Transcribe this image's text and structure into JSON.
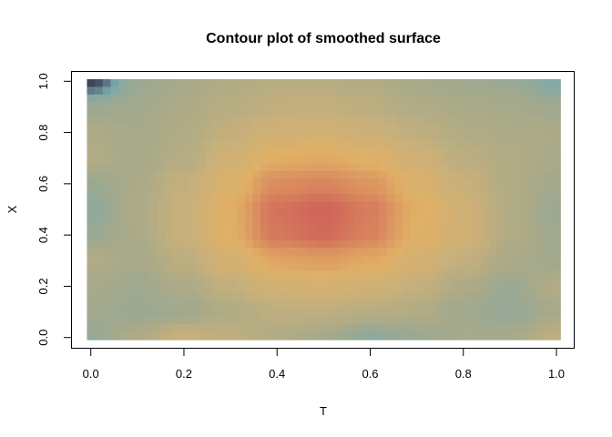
{
  "chart_data": {
    "type": "heatmap",
    "title": "Contour plot of  smoothed surface",
    "xlabel": "T",
    "ylabel": "X",
    "xlim": [
      0,
      1
    ],
    "ylim": [
      0,
      1
    ],
    "xticks": [
      "0.0",
      "0.2",
      "0.4",
      "0.6",
      "0.8",
      "1.0"
    ],
    "yticks": [
      "0.0",
      "0.2",
      "0.4",
      "0.6",
      "0.8",
      "1.0"
    ],
    "grid": false,
    "colormap": [
      "#3f4358",
      "#7aa9ad",
      "#a3a98c",
      "#c8b07a",
      "#e0b066",
      "#da8a5e",
      "#cd5c58"
    ],
    "x": [
      0,
      0.1,
      0.2,
      0.3,
      0.4,
      0.5,
      0.6,
      0.7,
      0.8,
      0.9,
      1.0
    ],
    "y": [
      1.0,
      0.9,
      0.8,
      0.7,
      0.6,
      0.5,
      0.4,
      0.3,
      0.2,
      0.1,
      0.0
    ],
    "z": [
      [
        0.0,
        0.3,
        0.35,
        0.4,
        0.42,
        0.42,
        0.4,
        0.35,
        0.32,
        0.3,
        0.2
      ],
      [
        0.3,
        0.33,
        0.38,
        0.43,
        0.47,
        0.48,
        0.45,
        0.4,
        0.37,
        0.35,
        0.32
      ],
      [
        0.38,
        0.35,
        0.4,
        0.48,
        0.55,
        0.56,
        0.52,
        0.46,
        0.4,
        0.38,
        0.37
      ],
      [
        0.4,
        0.35,
        0.42,
        0.55,
        0.68,
        0.7,
        0.65,
        0.55,
        0.45,
        0.4,
        0.36
      ],
      [
        0.3,
        0.37,
        0.48,
        0.62,
        0.82,
        0.85,
        0.78,
        0.62,
        0.5,
        0.4,
        0.33
      ],
      [
        0.25,
        0.38,
        0.5,
        0.68,
        0.92,
        0.97,
        0.88,
        0.68,
        0.55,
        0.4,
        0.3
      ],
      [
        0.3,
        0.37,
        0.5,
        0.67,
        0.9,
        0.95,
        0.86,
        0.66,
        0.55,
        0.4,
        0.32
      ],
      [
        0.4,
        0.35,
        0.45,
        0.58,
        0.72,
        0.75,
        0.7,
        0.58,
        0.48,
        0.37,
        0.33
      ],
      [
        0.35,
        0.32,
        0.38,
        0.47,
        0.56,
        0.58,
        0.55,
        0.48,
        0.38,
        0.3,
        0.4
      ],
      [
        0.33,
        0.3,
        0.32,
        0.4,
        0.45,
        0.45,
        0.42,
        0.4,
        0.32,
        0.28,
        0.35
      ],
      [
        0.28,
        0.38,
        0.5,
        0.45,
        0.4,
        0.35,
        0.25,
        0.3,
        0.35,
        0.35,
        0.45
      ]
    ]
  }
}
